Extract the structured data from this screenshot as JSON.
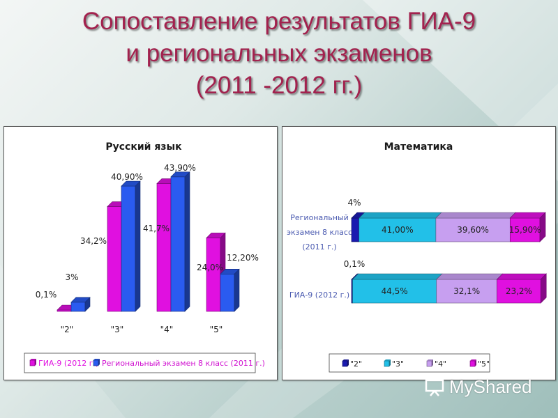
{
  "slide": {
    "title_lines": [
      "Сопоставление результатов ГИА-9",
      "и региональных экзаменов",
      "(2011 -2012 гг.)"
    ],
    "watermark": "MyShared"
  },
  "colors": {
    "title": "#a2224e",
    "magenta": "#e010e0",
    "blue": "#2a5bf0",
    "cyan": "#22c0e8",
    "lilac": "#c79ff0",
    "darkblue": "#1a1ab0"
  },
  "chart_data": [
    {
      "type": "bar",
      "title": "Русский язык",
      "categories": [
        "\"2\"",
        "\"3\"",
        "\"4\"",
        "\"5\""
      ],
      "series": [
        {
          "name": "ГИА-9 (2012 г.)",
          "values": [
            0.1,
            34.2,
            41.7,
            24.0
          ],
          "labels": [
            "0,1%",
            "34,2%",
            "41,7%",
            "24,0%"
          ],
          "color": "#e010e0"
        },
        {
          "name": "Региональный экзамен 8 класс (2011 г.)",
          "values": [
            3,
            40.9,
            43.9,
            12.2
          ],
          "labels": [
            "3%",
            "40,90%",
            "43,90%",
            "12,20%"
          ],
          "color": "#2a5bf0"
        }
      ],
      "legend_position": "bottom",
      "ylim": [
        0,
        50
      ],
      "grid": false
    },
    {
      "type": "bar",
      "orientation": "horizontal-stacked",
      "title": "Математика",
      "categories": [
        "Региональный экзамен 8 класс (2011 г.)",
        "ГИА-9 (2012 г.)"
      ],
      "legend": [
        "\"2\"",
        "\"3\"",
        "\"4\"",
        "\"5\""
      ],
      "series": [
        {
          "name": "\"2\"",
          "values": [
            4,
            0.1
          ],
          "labels": [
            "4%",
            "0,1%"
          ],
          "color": "#1a1ab0"
        },
        {
          "name": "\"3\"",
          "values": [
            41.0,
            44.5
          ],
          "labels": [
            "41,00%",
            "44,5%"
          ],
          "color": "#22c0e8"
        },
        {
          "name": "\"4\"",
          "values": [
            39.6,
            32.1
          ],
          "labels": [
            "39,60%",
            "32,1%"
          ],
          "color": "#c79ff0"
        },
        {
          "name": "\"5\"",
          "values": [
            15.9,
            23.2
          ],
          "labels": [
            "15,90%",
            "23,2%"
          ],
          "color": "#e010e0"
        }
      ],
      "legend_position": "bottom",
      "grid": false
    }
  ]
}
